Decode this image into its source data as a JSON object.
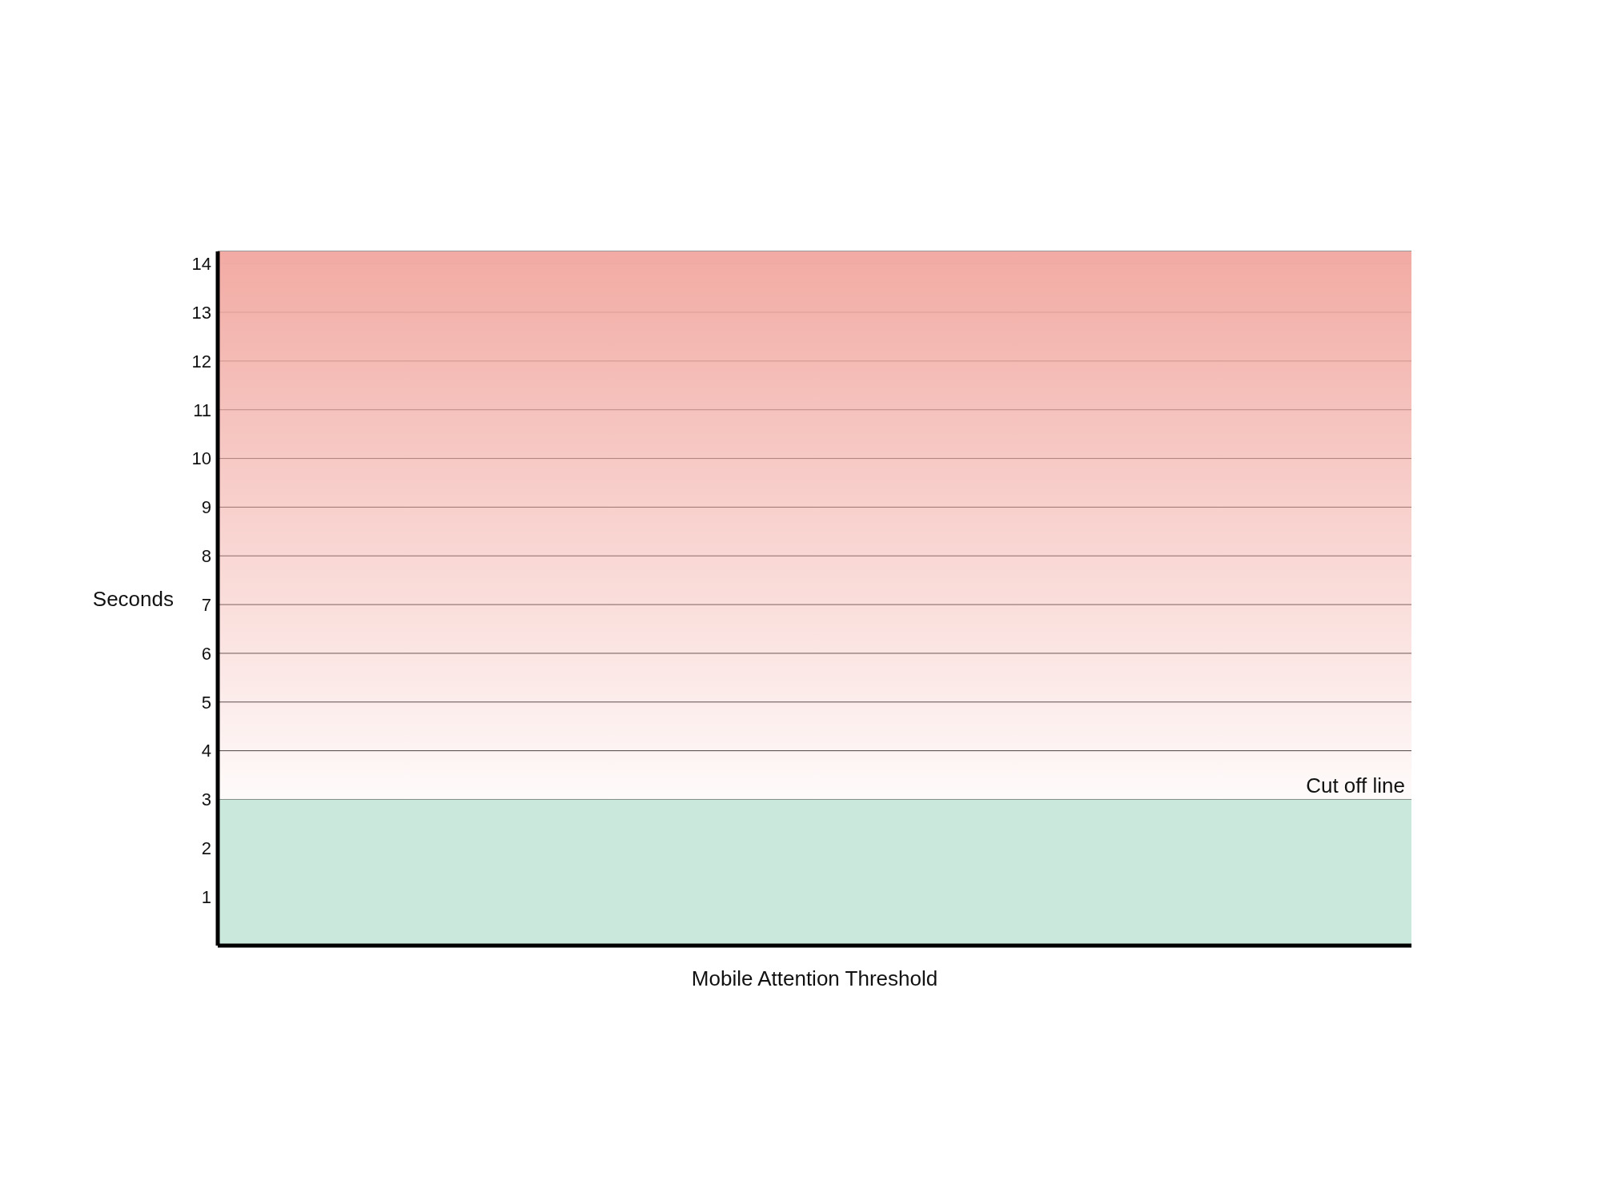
{
  "chart_data": {
    "type": "bar",
    "stacked": true,
    "xlabel": "Mobile Attention Threshold",
    "ylabel": "Seconds",
    "categories": [
      null
    ],
    "ylim": [
      0,
      14.25
    ],
    "yticks": [
      1,
      2,
      3,
      4,
      5,
      6,
      7,
      8,
      9,
      10,
      11,
      12,
      13,
      14
    ],
    "grid": "y",
    "tick_labels": "y",
    "series": [
      {
        "color": "#cbe8dc",
        "values": [
          3
        ]
      },
      {
        "color": "#f2aba4",
        "values": [
          11.25
        ]
      }
    ],
    "annotations": [
      {
        "text": "Cut off line",
        "y": 3
      }
    ]
  }
}
